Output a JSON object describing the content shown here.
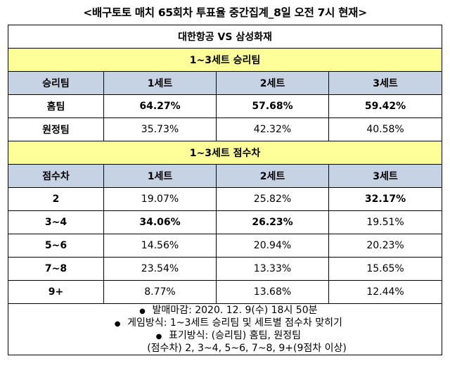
{
  "title": "<배구토토 매치 65회차 투표율 중간집계_8일 오전 7시 현재>",
  "match": "대한항공 VS 삼성화재",
  "section1": {
    "title": "1~3세트 승리팀",
    "header": [
      "승리팀",
      "1세트",
      "2세트",
      "3세트"
    ],
    "rows": [
      {
        "label": "홈팀",
        "values": [
          "64.27%",
          "57.68%",
          "59.42%"
        ],
        "bold": [
          true,
          true,
          true
        ]
      },
      {
        "label": "원정팀",
        "values": [
          "35.73%",
          "42.32%",
          "40.58%"
        ],
        "bold": [
          false,
          false,
          false
        ]
      }
    ]
  },
  "section2": {
    "title": "1~3세트 점수차",
    "header": [
      "점수차",
      "1세트",
      "2세트",
      "3세트"
    ],
    "rows": [
      {
        "label": "2",
        "values": [
          "19.07%",
          "25.82%",
          "32.17%"
        ],
        "bold": [
          false,
          false,
          true
        ]
      },
      {
        "label": "3~4",
        "values": [
          "34.06%",
          "26.23%",
          "19.51%"
        ],
        "bold": [
          true,
          true,
          false
        ]
      },
      {
        "label": "5~6",
        "values": [
          "14.56%",
          "20.94%",
          "20.23%"
        ],
        "bold": [
          false,
          false,
          false
        ]
      },
      {
        "label": "7~8",
        "values": [
          "23.54%",
          "13.33%",
          "15.65%"
        ],
        "bold": [
          false,
          false,
          false
        ]
      },
      {
        "label": "9+",
        "values": [
          "8.77%",
          "13.68%",
          "12.44%"
        ],
        "bold": [
          false,
          false,
          false
        ]
      }
    ]
  },
  "notes": {
    "bullet": "●",
    "deadline": "발매마감: 2020. 12. 9(수) 18시 50분",
    "method": "게임방식: 1~3세트 승리팀 및 세트별 점수차 맞히기",
    "notation": "표기방식: (승리팀) 홈팀, 원정팀",
    "notation_cont": "(점수차) 2, 3~4, 5~6, 7~8, 9+(9점차 이상)"
  }
}
